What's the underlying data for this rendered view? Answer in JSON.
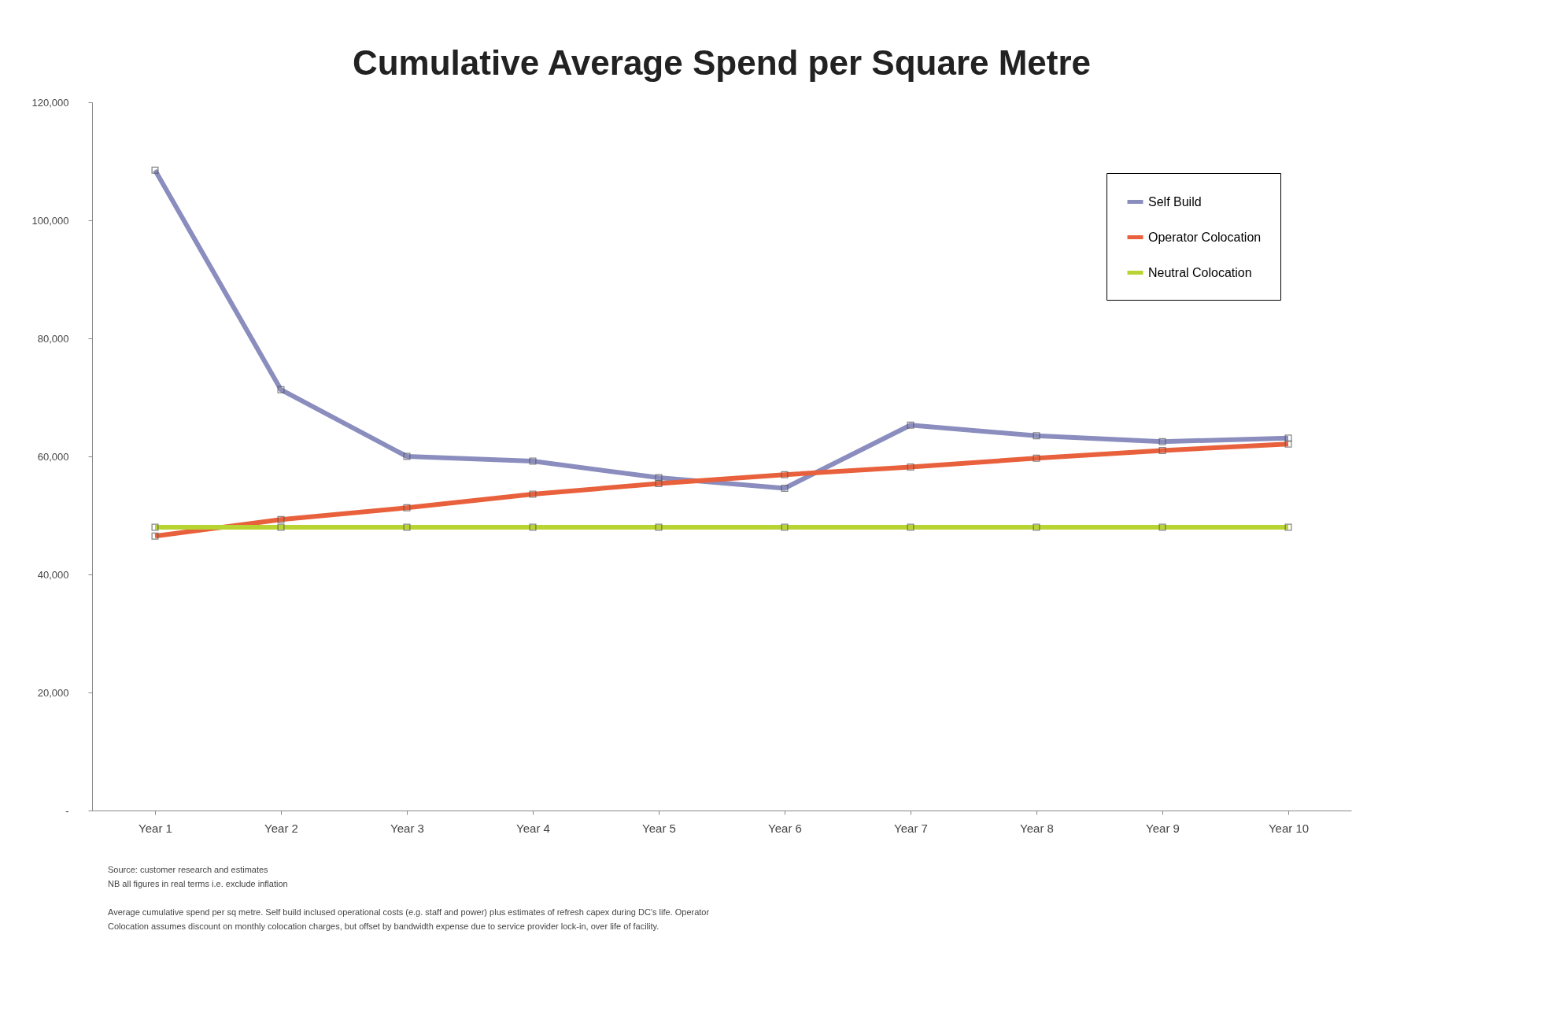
{
  "chart_data": {
    "type": "line",
    "title": "Cumulative Average Spend per Square Metre",
    "categories": [
      "Year 1",
      "Year 2",
      "Year 3",
      "Year 4",
      "Year 5",
      "Year 6",
      "Year 7",
      "Year 8",
      "Year 9",
      "Year 10"
    ],
    "series": [
      {
        "name": "Self Build",
        "color": "#8a8dbd",
        "values": [
          108500,
          71300,
          60000,
          59200,
          56400,
          54600,
          65300,
          63500,
          62500,
          63100
        ]
      },
      {
        "name": "Operator Colocation",
        "color": "#e8603c",
        "values": [
          46500,
          49300,
          51300,
          53600,
          55400,
          56900,
          58200,
          59700,
          61000,
          62100
        ]
      },
      {
        "name": "Neutral Colocation",
        "color": "#b8d432",
        "values": [
          48000,
          48000,
          48000,
          48000,
          48000,
          48000,
          48000,
          48000,
          48000,
          48000
        ]
      }
    ],
    "ylim": [
      0,
      120000
    ],
    "yticks": [
      {
        "value": 0,
        "label": "-"
      },
      {
        "value": 20000,
        "label": "20,000"
      },
      {
        "value": 40000,
        "label": "40,000"
      },
      {
        "value": 60000,
        "label": "60,000"
      },
      {
        "value": 80000,
        "label": "80,000"
      },
      {
        "value": 100000,
        "label": "100,000"
      },
      {
        "value": 120000,
        "label": "120,000"
      }
    ],
    "grid": false,
    "legend": "top right",
    "marker": "square",
    "line_style": "solid",
    "annotations": [
      "Source: customer research and estimates",
      "NB all figures in real terms i.e. exclude inflation",
      "Average cumulative spend per sq metre.  Self build inclused operational costs (e.g. staff and power) plus estimates of refresh capex during DC's life.  Operator",
      "Colocation assumes discount on monthly colocation charges, but offset by bandwidth expense due to service provider lock-in, over life of facility."
    ]
  }
}
